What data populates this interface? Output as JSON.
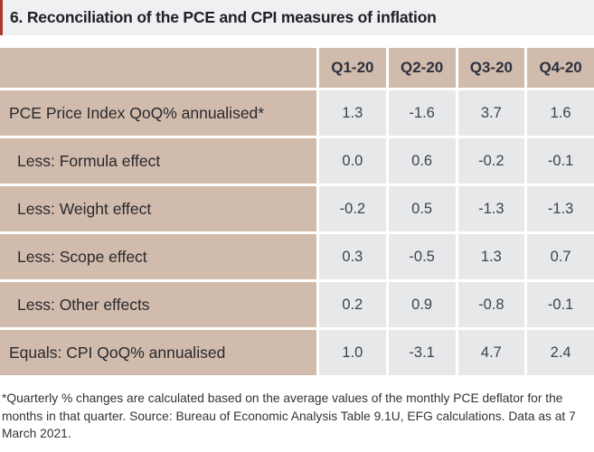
{
  "title": "6. Reconciliation of the PCE and CPI measures of inflation",
  "colors": {
    "accent_red": "#a93a31",
    "title_bar_bg": "#eef0f1",
    "header_and_label_bg": "#d1bbac",
    "value_cell_bg": "#e6e8ea",
    "text_dark": "#26272b"
  },
  "chart_data": {
    "type": "table",
    "title": "6. Reconciliation of the PCE and CPI measures of inflation",
    "columns": [
      "Q1-20",
      "Q2-20",
      "Q3-20",
      "Q4-20"
    ],
    "rows": [
      {
        "label": "PCE Price Index QoQ% annualised*",
        "values": [
          "1.3",
          "-1.6",
          "3.7",
          "1.6"
        ]
      },
      {
        "label": "Less: Formula effect",
        "values": [
          "0.0",
          "0.6",
          "-0.2",
          "-0.1"
        ]
      },
      {
        "label": "Less: Weight effect",
        "values": [
          "-0.2",
          "0.5",
          "-1.3",
          "-1.3"
        ]
      },
      {
        "label": "Less: Scope effect",
        "values": [
          "0.3",
          "-0.5",
          "1.3",
          "0.7"
        ]
      },
      {
        "label": "Less: Other effects",
        "values": [
          "0.2",
          "0.9",
          "-0.8",
          "-0.1"
        ]
      },
      {
        "label": "Equals: CPI QoQ% annualised",
        "values": [
          "1.0",
          "-3.1",
          "4.7",
          "2.4"
        ]
      }
    ]
  },
  "footnote": "*Quarterly % changes are calculated based on the average values of the monthly PCE deflator for the months in that quarter. Source: Bureau of Economic Analysis Table 9.1U, EFG calculations. Data as at 7 March 2021."
}
